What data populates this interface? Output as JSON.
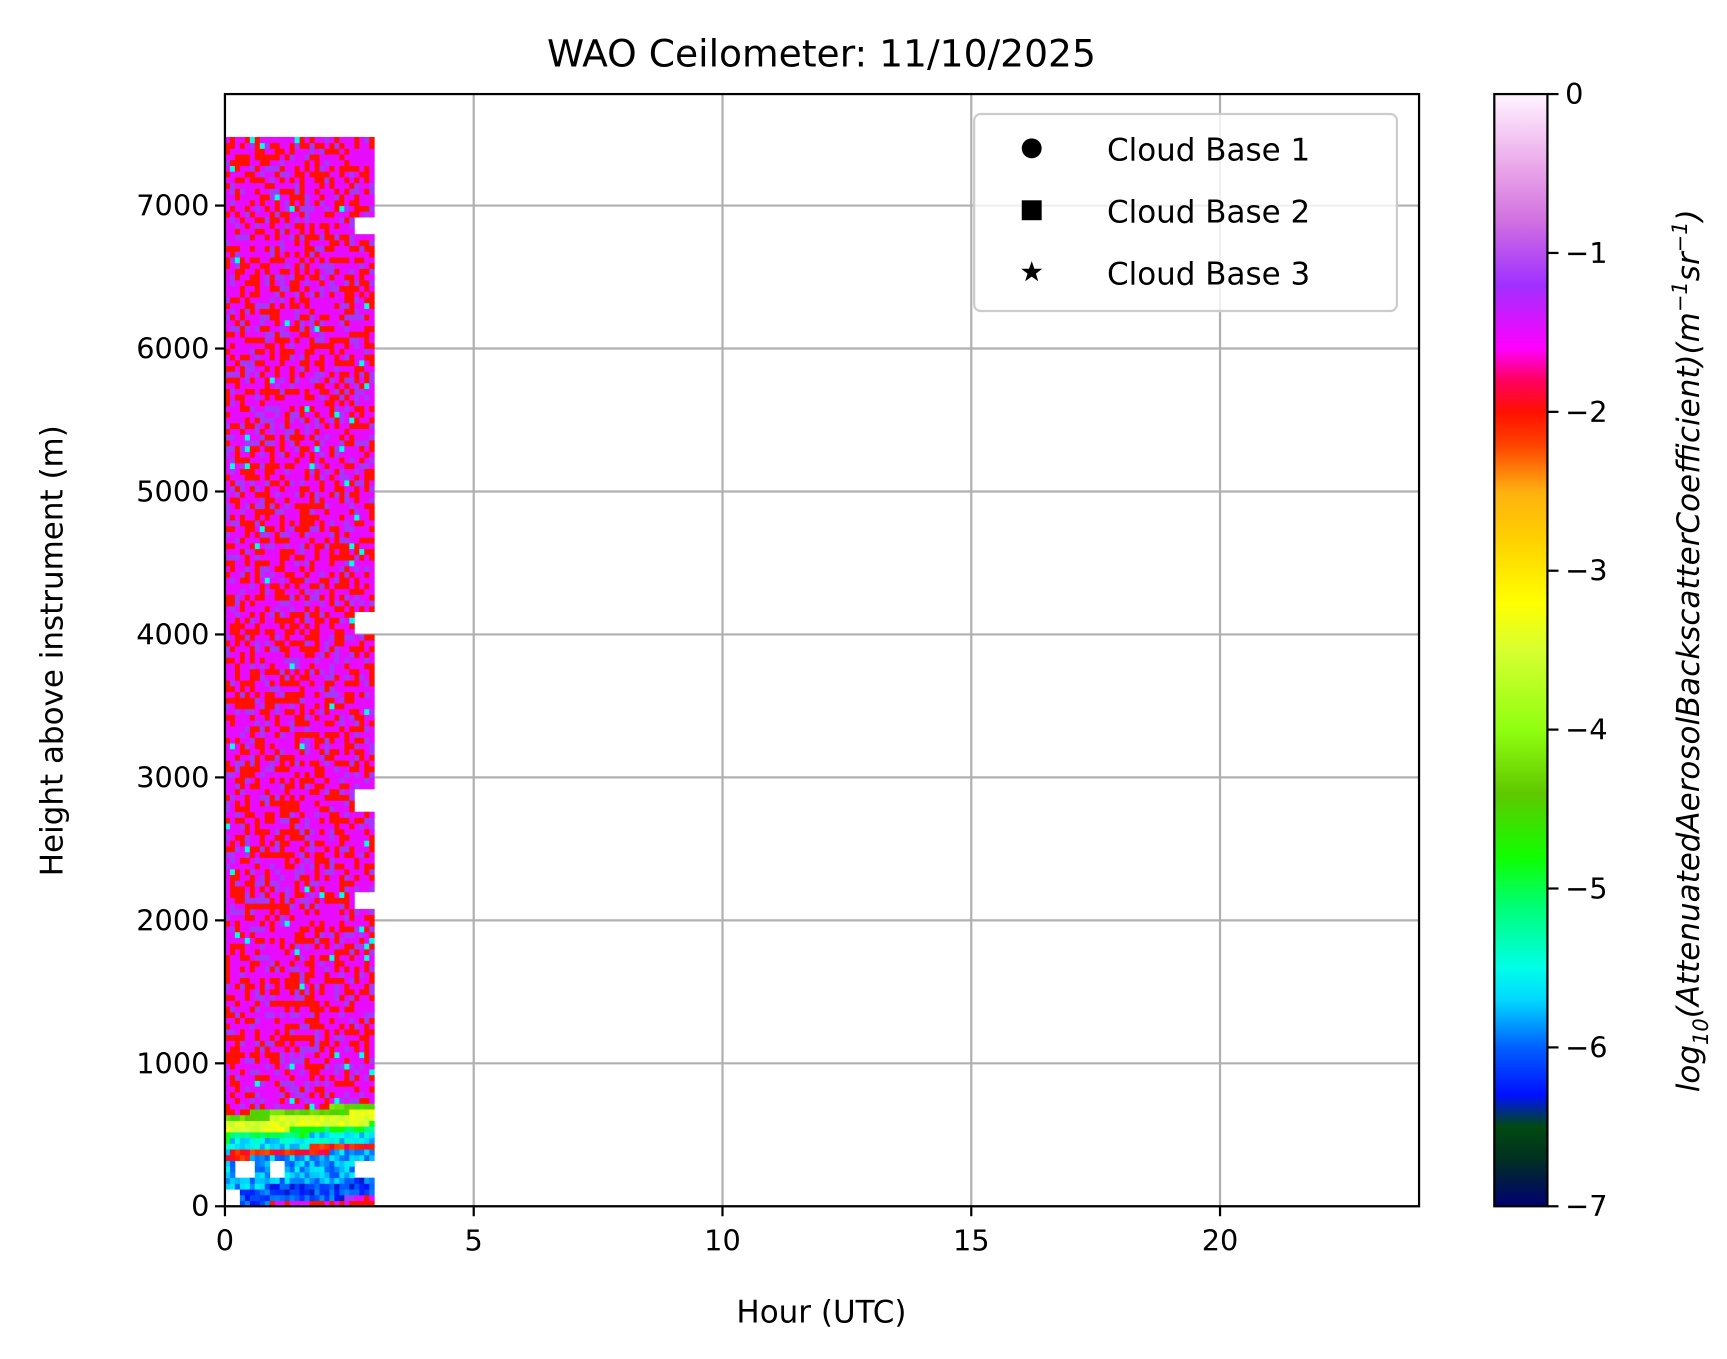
{
  "chart_data": {
    "type": "heatmap",
    "title": "WAO Ceilometer: 11/10/2025",
    "xlabel": "Hour (UTC)",
    "ylabel": "Height above instrument (m)",
    "xlim": [
      0,
      24
    ],
    "ylim": [
      0,
      7780
    ],
    "xticks": [
      "0",
      "5",
      "10",
      "15",
      "20"
    ],
    "xtick_values": [
      0,
      5,
      10,
      15,
      20
    ],
    "yticks": [
      "0",
      "1000",
      "2000",
      "3000",
      "4000",
      "5000",
      "6000",
      "7000"
    ],
    "ytick_values": [
      0,
      1000,
      2000,
      3000,
      4000,
      5000,
      6000,
      7000
    ],
    "grid": true,
    "data_time_range": [
      0,
      3.0
    ],
    "data_height_range": [
      0,
      7480
    ],
    "time_step_h": 0.1,
    "height_step_m": 40,
    "profile": [
      {
        "z": [
          0,
          120
        ],
        "value": -6.1
      },
      {
        "z": [
          120,
          330
        ],
        "value": -5.8
      },
      {
        "z": [
          330,
          380
        ],
        "value": -2.0
      },
      {
        "z": [
          380,
          460
        ],
        "value": -5.6
      },
      {
        "z": [
          460,
          510
        ],
        "value": -5.0
      },
      {
        "z": [
          510,
          600
        ],
        "value": -3.4
      },
      {
        "z": [
          600,
          650
        ],
        "value": -4.4
      },
      {
        "z": [
          650,
          7480
        ],
        "value": -1.5
      }
    ],
    "missing": [
      {
        "t": [
          2.64,
          3.0
        ],
        "z": [
          6790,
          6910
        ]
      },
      {
        "t": [
          2.64,
          3.0
        ],
        "z": [
          3990,
          4140
        ]
      },
      {
        "t": [
          2.64,
          3.0
        ],
        "z": [
          2760,
          2900
        ]
      },
      {
        "t": [
          2.64,
          3.0
        ],
        "z": [
          2070,
          2180
        ]
      },
      {
        "t": [
          2.64,
          3.0
        ],
        "z": [
          220,
          325
        ]
      },
      {
        "t": [
          0.2,
          0.55
        ],
        "z": [
          220,
          330
        ]
      },
      {
        "t": [
          0.9,
          1.2
        ],
        "z": [
          220,
          330
        ]
      },
      {
        "t": [
          0,
          0.35
        ],
        "z": [
          0,
          110
        ]
      }
    ],
    "legend": {
      "placement": "top-right",
      "entries": [
        {
          "label": "Cloud Base 1",
          "marker": "circle"
        },
        {
          "label": "Cloud Base 2",
          "marker": "square"
        },
        {
          "label": "Cloud Base 3",
          "marker": "star"
        }
      ]
    },
    "colorbar": {
      "label_main": "log",
      "label_sub": "10",
      "label_rest": "(AttenuatedAerosolBackscatterCoefficient)(m",
      "label_exp1": "−1",
      "label_sr": "sr",
      "label_exp2": "−1",
      "label_close": ")",
      "range": [
        -7,
        0
      ],
      "ticks": [
        "0",
        "−1",
        "−2",
        "−3",
        "−4",
        "−5",
        "−6",
        "−7"
      ],
      "tick_values": [
        0,
        -1,
        -2,
        -3,
        -4,
        -5,
        -6,
        -7
      ],
      "colormap_stops": [
        [
          -7,
          "#000070"
        ],
        [
          -6.7,
          "#003020"
        ],
        [
          -6.5,
          "#004a10"
        ],
        [
          -6.3,
          "#0010ff"
        ],
        [
          -6.0,
          "#0060ff"
        ],
        [
          -5.7,
          "#00d8ff"
        ],
        [
          -5.5,
          "#00ffe8"
        ],
        [
          -5.1,
          "#00ff70"
        ],
        [
          -4.8,
          "#10ff00"
        ],
        [
          -4.4,
          "#60c800"
        ],
        [
          -4.0,
          "#90ff10"
        ],
        [
          -3.5,
          "#d8ff30"
        ],
        [
          -3.2,
          "#ffff00"
        ],
        [
          -2.8,
          "#ffd000"
        ],
        [
          -2.5,
          "#ffb010"
        ],
        [
          -2.2,
          "#ff4000"
        ],
        [
          -2.0,
          "#ff1000"
        ],
        [
          -1.8,
          "#ff0060"
        ],
        [
          -1.6,
          "#ff00ff"
        ],
        [
          -1.2,
          "#a030ff"
        ],
        [
          -0.8,
          "#d070e0"
        ],
        [
          -0.5,
          "#e8a0e8"
        ],
        [
          0,
          "#fff4ff"
        ]
      ]
    }
  }
}
